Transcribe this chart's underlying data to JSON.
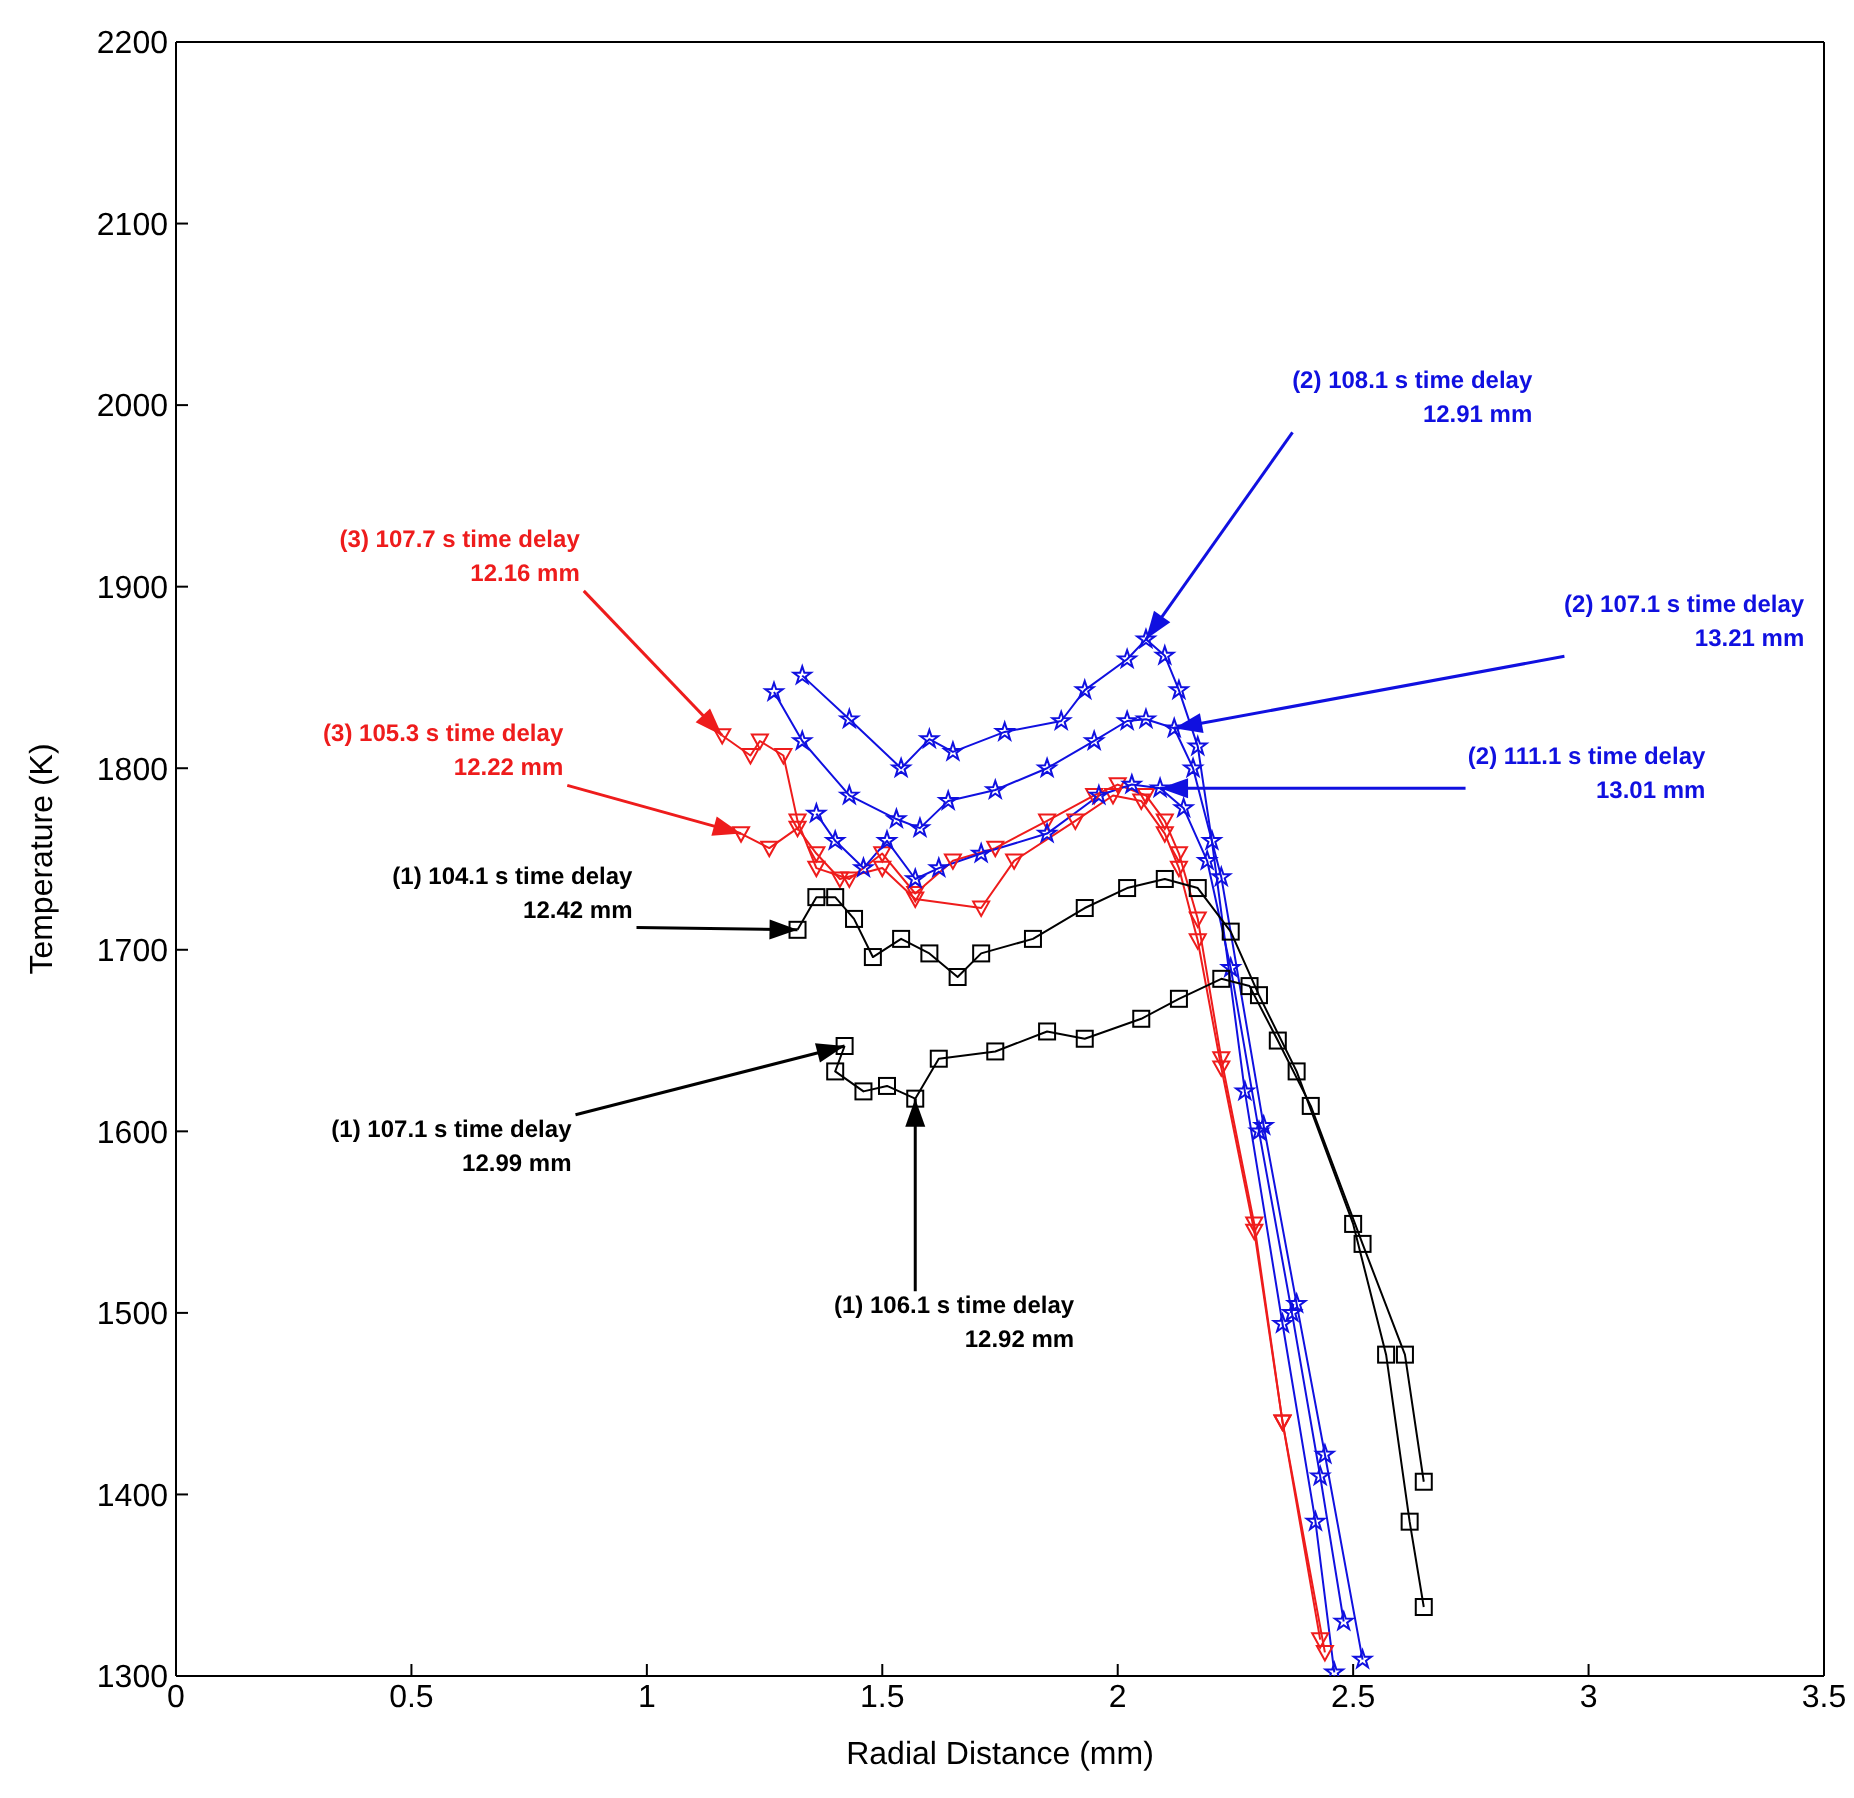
{
  "chart_data": {
    "type": "line",
    "xlabel": "Radial Distance (mm)",
    "ylabel": "Temperature (K)",
    "xlim": [
      0,
      3.5
    ],
    "xticks": [
      0,
      0.5,
      1,
      1.5,
      2,
      2.5,
      3,
      3.5
    ],
    "ylim": [
      1300,
      2200
    ],
    "yticks": [
      1300,
      1400,
      1500,
      1600,
      1700,
      1800,
      1900,
      2000,
      2100,
      2200
    ],
    "line_style": "solid",
    "series": [
      {
        "color": "#ee1c1c",
        "marker": "triangle",
        "x": [
          1.16,
          1.22,
          1.24,
          1.29,
          1.32,
          1.36,
          1.43,
          1.5,
          1.57,
          1.65,
          1.74,
          1.85,
          1.95,
          2.0,
          2.06,
          2.1,
          2.13,
          2.17,
          2.22,
          2.29,
          2.35,
          2.44
        ],
        "values": [
          1818,
          1807,
          1815,
          1807,
          1771,
          1745,
          1739,
          1753,
          1731,
          1749,
          1756,
          1771,
          1785,
          1791,
          1785,
          1771,
          1753,
          1717,
          1640,
          1549,
          1440,
          1313
        ]
      },
      {
        "color": "#ee1c1c",
        "marker": "triangle",
        "x": [
          1.2,
          1.26,
          1.32,
          1.36,
          1.41,
          1.5,
          1.57,
          1.71,
          1.78,
          1.91,
          1.99,
          2.05,
          2.1,
          2.13,
          2.17,
          2.22,
          2.29,
          2.35,
          2.43
        ],
        "values": [
          1764,
          1756,
          1767,
          1753,
          1739,
          1745,
          1728,
          1723,
          1749,
          1771,
          1785,
          1782,
          1764,
          1745,
          1705,
          1635,
          1545,
          1440,
          1320
        ]
      },
      {
        "color": "#1010e0",
        "marker": "star",
        "x": [
          1.33,
          1.43,
          1.54,
          1.6,
          1.65,
          1.76,
          1.88,
          1.93,
          2.02,
          2.06,
          2.1,
          2.13,
          2.17,
          2.2,
          2.27,
          2.35,
          2.42,
          2.46
        ],
        "values": [
          1851,
          1827,
          1800,
          1816,
          1809,
          1820,
          1826,
          1843,
          1860,
          1871,
          1862,
          1843,
          1812,
          1760,
          1622,
          1494,
          1385,
          1302
        ]
      },
      {
        "color": "#1010e0",
        "marker": "star",
        "x": [
          1.27,
          1.33,
          1.43,
          1.53,
          1.58,
          1.64,
          1.74,
          1.85,
          1.95,
          2.02,
          2.06,
          2.12,
          2.16,
          2.22,
          2.31,
          2.38,
          2.44,
          2.52
        ],
        "values": [
          1842,
          1815,
          1785,
          1772,
          1767,
          1782,
          1788,
          1800,
          1815,
          1826,
          1827,
          1822,
          1800,
          1740,
          1603,
          1505,
          1422,
          1309
        ]
      },
      {
        "color": "#1010e0",
        "marker": "star",
        "x": [
          1.36,
          1.4,
          1.46,
          1.51,
          1.57,
          1.62,
          1.71,
          1.85,
          1.96,
          2.03,
          2.09,
          2.14,
          2.19,
          2.24,
          2.3,
          2.37,
          2.43,
          2.48
        ],
        "values": [
          1775,
          1760,
          1745,
          1760,
          1739,
          1745,
          1753,
          1764,
          1785,
          1791,
          1789,
          1778,
          1749,
          1690,
          1600,
          1500,
          1410,
          1330
        ]
      },
      {
        "color": "#000000",
        "marker": "square",
        "x": [
          1.32,
          1.36,
          1.4,
          1.44,
          1.48,
          1.54,
          1.6,
          1.66,
          1.71,
          1.82,
          1.93,
          2.02,
          2.1,
          2.17,
          2.24,
          2.3,
          2.38,
          2.5,
          2.57,
          2.62,
          2.65
        ],
        "values": [
          1711,
          1729,
          1729,
          1717,
          1696,
          1706,
          1698,
          1685,
          1698,
          1706,
          1723,
          1734,
          1739,
          1734,
          1710,
          1675,
          1633,
          1549,
          1477,
          1385,
          1338
        ]
      },
      {
        "color": "#000000",
        "marker": "square",
        "x": [
          1.42,
          1.4,
          1.46,
          1.51,
          1.57,
          1.62,
          1.74,
          1.85,
          1.93,
          2.05,
          2.13,
          2.22,
          2.28,
          2.34,
          2.41,
          2.52,
          2.61,
          2.65
        ],
        "values": [
          1647,
          1633,
          1622,
          1625,
          1618,
          1640,
          1644,
          1655,
          1651,
          1662,
          1673,
          1684,
          1680,
          1650,
          1614,
          1538,
          1477,
          1407
        ]
      }
    ],
    "annotations": [
      {
        "text": "(3) 107.7 s time delay\n12.16 mm",
        "x": 1.16,
        "y": 1818
      },
      {
        "text": "(3) 105.3 s time delay\n12.22 mm",
        "x": 1.2,
        "y": 1764
      },
      {
        "text": "(2) 108.1 s time delay\n12.91 mm",
        "x": 2.06,
        "y": 1871
      },
      {
        "text": "(2) 107.1 s time delay\n13.21 mm",
        "x": 2.12,
        "y": 1822
      },
      {
        "text": "(2) 111.1 s time delay\n13.01 mm",
        "x": 2.09,
        "y": 1789
      },
      {
        "text": "(1) 104.1 s time delay\n12.42 mm",
        "x": 1.32,
        "y": 1711
      },
      {
        "text": "(1) 107.1 s time delay\n12.99 mm",
        "x": 1.42,
        "y": 1647
      },
      {
        "text": "(1) 106.1 s time delay\n12.92 mm",
        "x": 1.57,
        "y": 1618
      }
    ]
  }
}
